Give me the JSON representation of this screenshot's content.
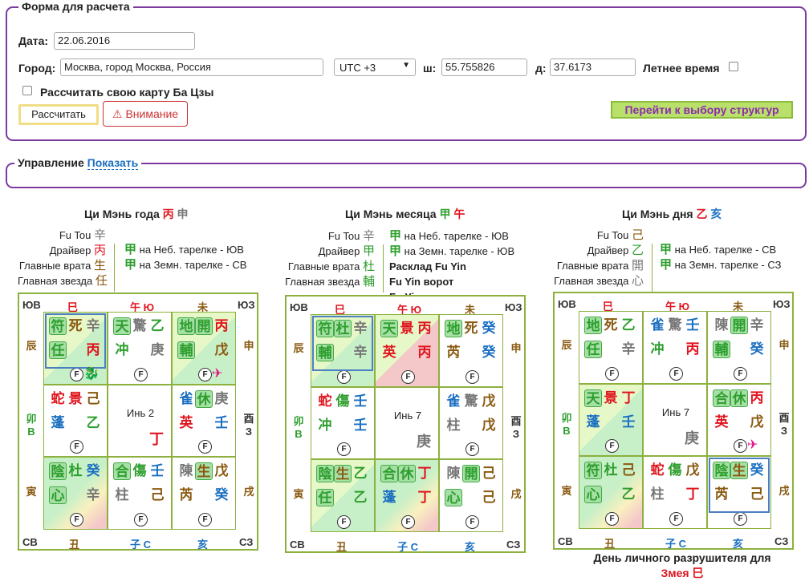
{
  "form": {
    "legend": "Форма для расчета",
    "date_label": "Дата:",
    "date_value": "22.06.2016",
    "city_label": "Город:",
    "city_value": "Москва, город Москва, Россия",
    "tz_value": "UTC +3",
    "lat_label": "ш:",
    "lat_value": "55.755826",
    "lon_label": "д:",
    "lon_value": "37.6173",
    "summer_label": "Летнее время",
    "bazi_label": "Рассчитать свою карту Ба Цзы",
    "calc_button": "Рассчитать",
    "warn_button": "Внимание",
    "go_button": "Перейти к выбору структур"
  },
  "control": {
    "legend": "Управление",
    "show_link": "Показать"
  },
  "charts": [
    {
      "title": "Ци Мэнь года",
      "t1": "丙",
      "t2": "申",
      "info_left": [
        [
          "Fu Tou",
          "辛",
          "gry"
        ],
        [
          "Драйвер",
          "丙",
          "red"
        ],
        [
          "Главные врата",
          "生",
          "brn"
        ],
        [
          "Главная звезда",
          "任",
          "brn"
        ]
      ],
      "info_right": [
        [
          "甲",
          "на Неб. тарелке - ЮВ"
        ],
        [
          "甲",
          "на Земн. тарелке - СВ"
        ]
      ],
      "top": [
        "ЮВ",
        "巳",
        "午 Ю",
        "未",
        "ЮЗ"
      ],
      "side_l": [
        "辰",
        "卯 В",
        "寅"
      ],
      "side_r": [
        "申",
        "酉 З",
        "戌"
      ],
      "bot": [
        "СВ",
        "丑",
        "子 С",
        "亥",
        "СЗ"
      ],
      "center": [
        "Инь 2",
        "丁"
      ]
    },
    {
      "title": "Ци Мэнь месяца",
      "t1": "甲",
      "t2": "午",
      "info_left": [
        [
          "Fu Tou",
          "辛",
          "gry"
        ],
        [
          "Драйвер",
          "甲",
          "grn"
        ],
        [
          "Главные врата",
          "杜",
          "grn"
        ],
        [
          "Главная звезда",
          "輔",
          "grn"
        ]
      ],
      "info_right": [
        [
          "甲",
          "на Неб. тарелке - ЮВ"
        ],
        [
          "甲",
          "на Земн. тарелке - ЮВ"
        ],
        [
          "",
          "Расклад Fu Yin"
        ],
        [
          "",
          "Fu Yin ворот"
        ],
        [
          "",
          "Fu Yin звезд"
        ]
      ],
      "top": [
        "ЮВ",
        "巳",
        "午 Ю",
        "未",
        "ЮЗ"
      ],
      "side_l": [
        "辰",
        "卯 В",
        "寅"
      ],
      "side_r": [
        "申",
        "酉 З",
        "戌"
      ],
      "bot": [
        "СВ",
        "丑",
        "子 С",
        "亥",
        "СЗ"
      ],
      "center": [
        "Инь 7",
        "庚"
      ]
    },
    {
      "title": "Ци Мэнь дня",
      "t1": "乙",
      "t2": "亥",
      "info_left": [
        [
          "Fu Tou",
          "己",
          "brn"
        ],
        [
          "Драйвер",
          "乙",
          "grn"
        ],
        [
          "Главные врата",
          "開",
          "gry"
        ],
        [
          "Главная звезда",
          "心",
          "gry"
        ]
      ],
      "info_right": [
        [
          "甲",
          "на Неб. тарелке - СВ"
        ],
        [
          "甲",
          "на Земн. тарелке - СЗ"
        ]
      ],
      "top": [
        "ЮВ",
        "巳",
        "午 Ю",
        "未",
        "ЮЗ"
      ],
      "side_l": [
        "辰",
        "卯 В",
        "寅"
      ],
      "side_r": [
        "申",
        "酉 З",
        "戌"
      ],
      "bot": [
        "СВ",
        "丑",
        "子 С",
        "亥",
        "СЗ"
      ],
      "center": [
        "Инь 7",
        "庚"
      ]
    }
  ],
  "footer": {
    "line1": "День личного разрушителя для",
    "line2": "Змея 巳"
  },
  "colors": {
    "border": "#7c3a9e",
    "green_frame": "#8db03e",
    "red": "#e0141e",
    "green": "#2d9e2d",
    "blue": "#1a6fc1"
  }
}
